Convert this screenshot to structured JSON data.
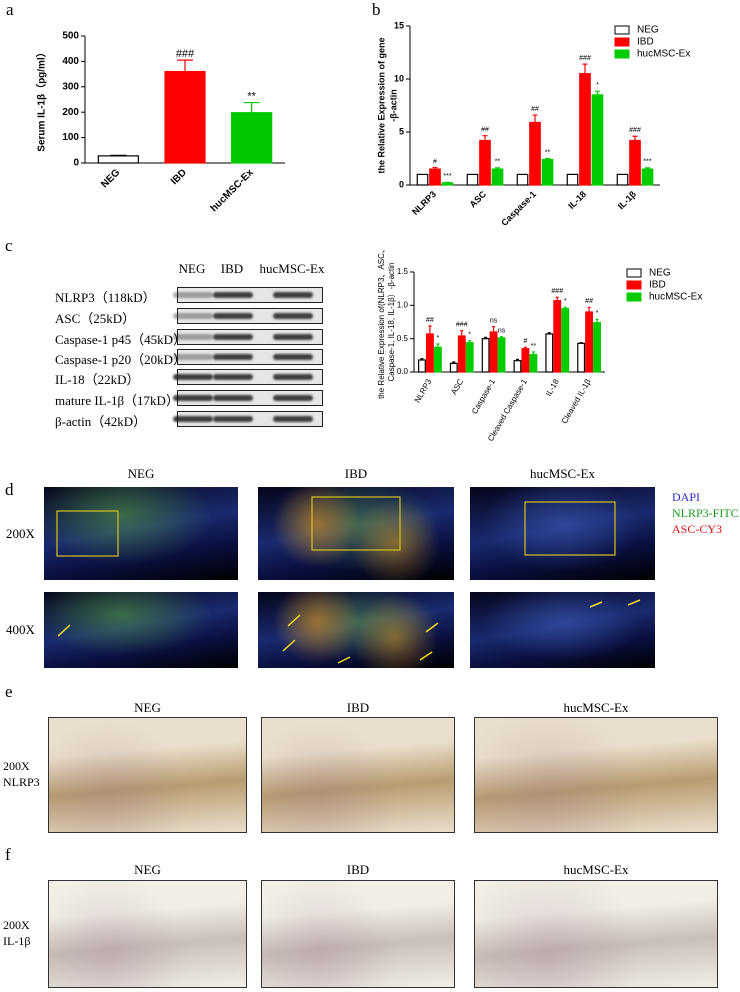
{
  "panel_letters": [
    "a",
    "b",
    "c",
    "d",
    "e",
    "f"
  ],
  "chart_data": [
    {
      "type": "bar",
      "ylabel": [
        "Serum IL-1β（pg/ml）"
      ],
      "categories": [
        "NEG",
        "IBD",
        "hucMSC-Ex"
      ],
      "values": [
        28,
        360,
        198
      ],
      "errors": [
        2,
        45,
        40
      ],
      "colors": [
        "#ffffff",
        "#ff0000",
        "#00c800"
      ],
      "bar_labels": [
        null,
        "###",
        "**"
      ],
      "ylim": [
        0,
        500
      ],
      "yticks": [
        0,
        100,
        200,
        300,
        400,
        500
      ]
    },
    {
      "type": "bar",
      "ylabel": [
        "the Relative Expression of gene",
        "-β-actin"
      ],
      "categories": [
        "NLRP3",
        "ASC",
        "Caspase-1",
        "IL-18",
        "IL-1β"
      ],
      "series": [
        {
          "name": "NEG",
          "color": "#ffffff",
          "values": [
            1,
            1,
            1,
            1,
            1
          ]
        },
        {
          "name": "IBD",
          "color": "#ff0000",
          "values": [
            1.5,
            4.2,
            5.9,
            10.5,
            4.2
          ],
          "errors": [
            0.15,
            0.45,
            0.7,
            0.9,
            0.4
          ],
          "labels": [
            "#",
            "##",
            "##",
            "###",
            "###"
          ]
        },
        {
          "name": "hucMSC-Ex",
          "color": "#00cc00",
          "values": [
            0.2,
            1.5,
            2.4,
            8.5,
            1.5
          ],
          "errors": [
            0.05,
            0.12,
            0.1,
            0.35,
            0.12
          ],
          "labels": [
            "***",
            "**",
            "**",
            "*",
            "***"
          ]
        }
      ],
      "ylim": [
        0,
        15
      ],
      "yticks": [
        0,
        5,
        10,
        15
      ],
      "legend": "top-right"
    },
    {
      "type": "bar",
      "ylabel": [
        "the Relative Expression of(NLRP3、ASC、",
        "Caspase-1, IL-18, IL-1β）-β-actin"
      ],
      "categories": [
        "NLRP3",
        "ASC",
        "Caspase-1",
        "Cleaved Caspase-1",
        "IL-18",
        "Cleaved IL-1β"
      ],
      "series": [
        {
          "name": "NEG",
          "color": "#ffffff",
          "values": [
            0.18,
            0.13,
            0.5,
            0.17,
            0.57,
            0.43
          ],
          "errors": [
            0.02,
            0.02,
            0.02,
            0.02,
            0.02,
            0.01
          ]
        },
        {
          "name": "IBD",
          "color": "#ff0000",
          "values": [
            0.57,
            0.54,
            0.6,
            0.35,
            1.07,
            0.9
          ],
          "errors": [
            0.12,
            0.08,
            0.08,
            0.02,
            0.05,
            0.07
          ],
          "labels": [
            "##",
            "###",
            "ns",
            "#",
            "###",
            "##"
          ]
        },
        {
          "name": "hucMSC-Ex",
          "color": "#00cc00",
          "values": [
            0.37,
            0.44,
            0.51,
            0.26,
            0.95,
            0.74
          ],
          "errors": [
            0.05,
            0.03,
            0.02,
            0.04,
            0.02,
            0.05
          ],
          "labels": [
            "*",
            "*",
            "ns",
            "**",
            "*",
            "*"
          ]
        }
      ],
      "ylim": [
        0,
        1.5
      ],
      "yticks": [
        {
          "value": 0,
          "label": "0.0"
        },
        0.5,
        {
          "value": 1,
          "label": "1.0"
        },
        1.5
      ],
      "legend": "top-right"
    }
  ],
  "western_blot": {
    "columns": [
      "NEG",
      "IBD",
      "hucMSC-Ex"
    ],
    "rows": [
      "NLRP3（118kD）",
      "ASC（25kD）",
      "Caspase-1 p45（45kD）",
      "Caspase-1 p20（20kD）",
      "IL-18（22kD）",
      "mature IL-1β（17kD）",
      "β-actin（42kD）"
    ]
  },
  "immunofluorescence": {
    "columns": [
      "NEG",
      "IBD",
      "hucMSC-Ex"
    ],
    "rows": [
      "200X",
      "400X"
    ],
    "legend": [
      {
        "name": "DAPI",
        "color": "#2a2ad0"
      },
      {
        "name": "NLRP3-FITC",
        "color": "#1a9a1a"
      },
      {
        "name": "ASC-CY3",
        "color": "#e01010"
      }
    ]
  },
  "ihc_nlrp3": {
    "columns": [
      "NEG",
      "IBD",
      "hucMSC-Ex"
    ],
    "row_label": [
      "200X",
      "NLRP3"
    ]
  },
  "ihc_il1b": {
    "columns": [
      "NEG",
      "IBD",
      "hucMSC-Ex"
    ],
    "row_label": [
      "200X",
      "IL-1β"
    ]
  }
}
